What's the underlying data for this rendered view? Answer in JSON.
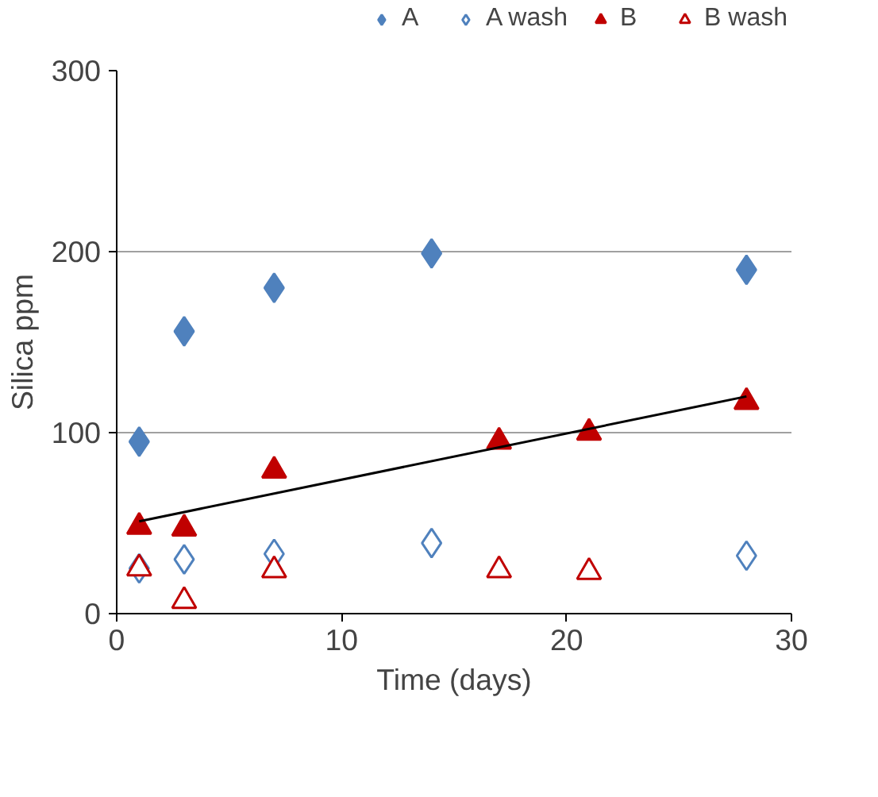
{
  "chart_data": {
    "type": "scatter",
    "xlabel": "Time (days)",
    "ylabel": "Silica ppm",
    "xlim": [
      0,
      30
    ],
    "ylim": [
      0,
      300
    ],
    "xticks": [
      0,
      10,
      20,
      30
    ],
    "yticks": [
      0,
      100,
      200,
      300
    ],
    "grid": "y",
    "legend": "top",
    "series": [
      {
        "name": "A",
        "color": "#4f81bd",
        "marker": "diamond",
        "x": [
          1,
          3,
          7,
          14,
          28
        ],
        "values": [
          95,
          156,
          180,
          199,
          190
        ]
      },
      {
        "name": "A wash",
        "color": "#4f81bd",
        "marker": "diamond open",
        "x": [
          1,
          3,
          7,
          14,
          28
        ],
        "values": [
          25,
          30,
          33,
          39,
          32
        ]
      },
      {
        "name": "B",
        "color": "#c00000",
        "marker": "triangle",
        "x": [
          1,
          3,
          7,
          17,
          21,
          28
        ],
        "values": [
          48,
          47,
          79,
          95,
          100,
          117
        ]
      },
      {
        "name": "B wash",
        "color": "#c00000",
        "marker": "triangle open",
        "x": [
          1,
          3,
          7,
          17,
          21
        ],
        "values": [
          25,
          7,
          24,
          24,
          23
        ]
      },
      {
        "type": "line",
        "color": "#000000",
        "x": [
          1,
          28
        ],
        "values": [
          51,
          120
        ]
      }
    ]
  }
}
